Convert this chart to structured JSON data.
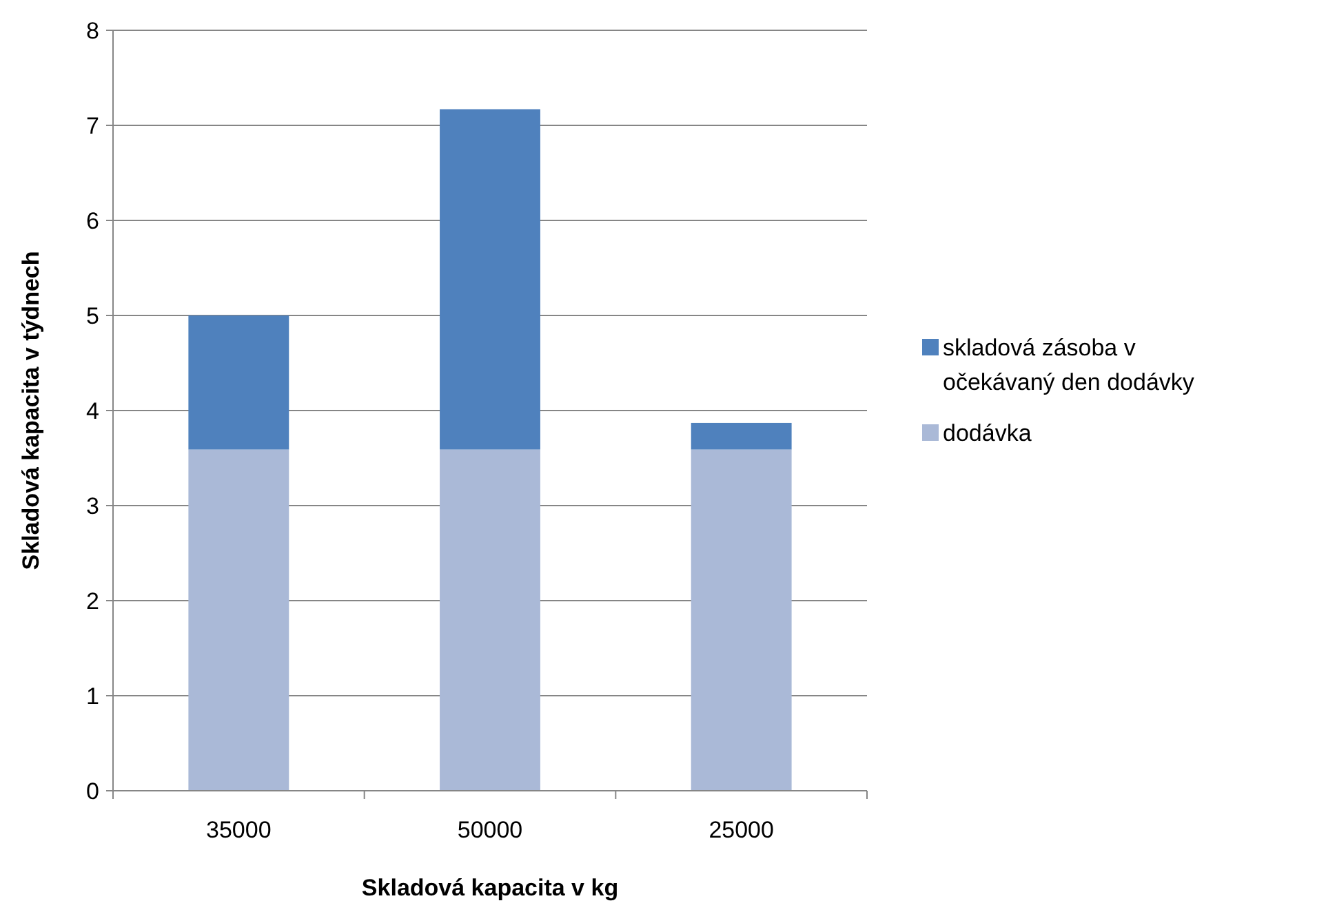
{
  "chart_data": {
    "type": "bar",
    "stacked": true,
    "xlabel": "Skladová kapacita v kg",
    "ylabel": "Skladová kapacita v týdnech",
    "categories": [
      "35000",
      "50000",
      "25000"
    ],
    "series": [
      {
        "name": "dodávka",
        "color": "#aab9d7",
        "values": [
          3.59,
          3.59,
          3.59
        ]
      },
      {
        "name": "skladová zásoba v očekávaný den dodávky",
        "color": "#4f81bd",
        "values": [
          1.41,
          3.58,
          0.28
        ]
      }
    ],
    "ylim": [
      0,
      8
    ],
    "yticks": [
      0,
      1,
      2,
      3,
      4,
      5,
      6,
      7,
      8
    ],
    "grid": "y",
    "legend": "right"
  }
}
